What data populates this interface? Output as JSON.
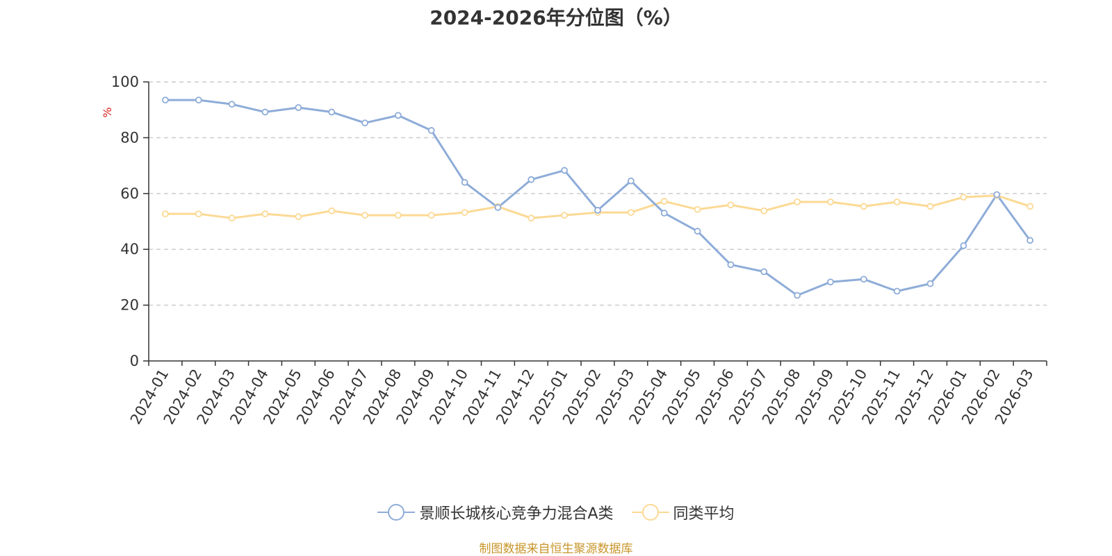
{
  "chart_data": {
    "type": "line",
    "title": "2024-2026年分位图（%）",
    "ylabel": "%",
    "xlabel": "",
    "ylim": [
      0,
      100
    ],
    "yticks": [
      0,
      20,
      40,
      60,
      80,
      100
    ],
    "grid": true,
    "legend_position": "bottom-center",
    "categories": [
      "2024-01",
      "2024-02",
      "2024-03",
      "2024-04",
      "2024-05",
      "2024-06",
      "2024-07",
      "2024-08",
      "2024-09",
      "2024-10",
      "2024-11",
      "2024-12",
      "2025-01",
      "2025-02",
      "2025-03",
      "2025-04",
      "2025-05",
      "2025-06",
      "2025-07",
      "2025-08",
      "2025-09",
      "2025-10",
      "2025-11",
      "2025-12",
      "2026-01",
      "2026-02",
      "2026-03"
    ],
    "series": [
      {
        "name": "景顺长城核心竞争力混合A类",
        "color": "#8eacd8",
        "values": [
          93.5,
          93.5,
          92,
          89.2,
          90.8,
          89.2,
          85.3,
          88,
          82.6,
          64,
          55,
          65,
          68.3,
          54,
          64.5,
          53,
          46.5,
          34.5,
          32,
          23.5,
          28.3,
          29.3,
          25,
          27.7,
          41.3,
          59.6,
          43.2
        ]
      },
      {
        "name": "同类平均",
        "color": "#fcd994",
        "values": [
          52.7,
          52.7,
          51.2,
          52.7,
          51.7,
          53.8,
          52.2,
          52.2,
          52.2,
          53.2,
          55.3,
          51.2,
          52.2,
          53.2,
          53.2,
          57.2,
          54.3,
          55.9,
          53.8,
          57,
          57,
          55.4,
          57,
          55.4,
          58.7,
          59.3,
          55.4
        ]
      }
    ]
  },
  "source_note": "制图数据来自恒生聚源数据库"
}
